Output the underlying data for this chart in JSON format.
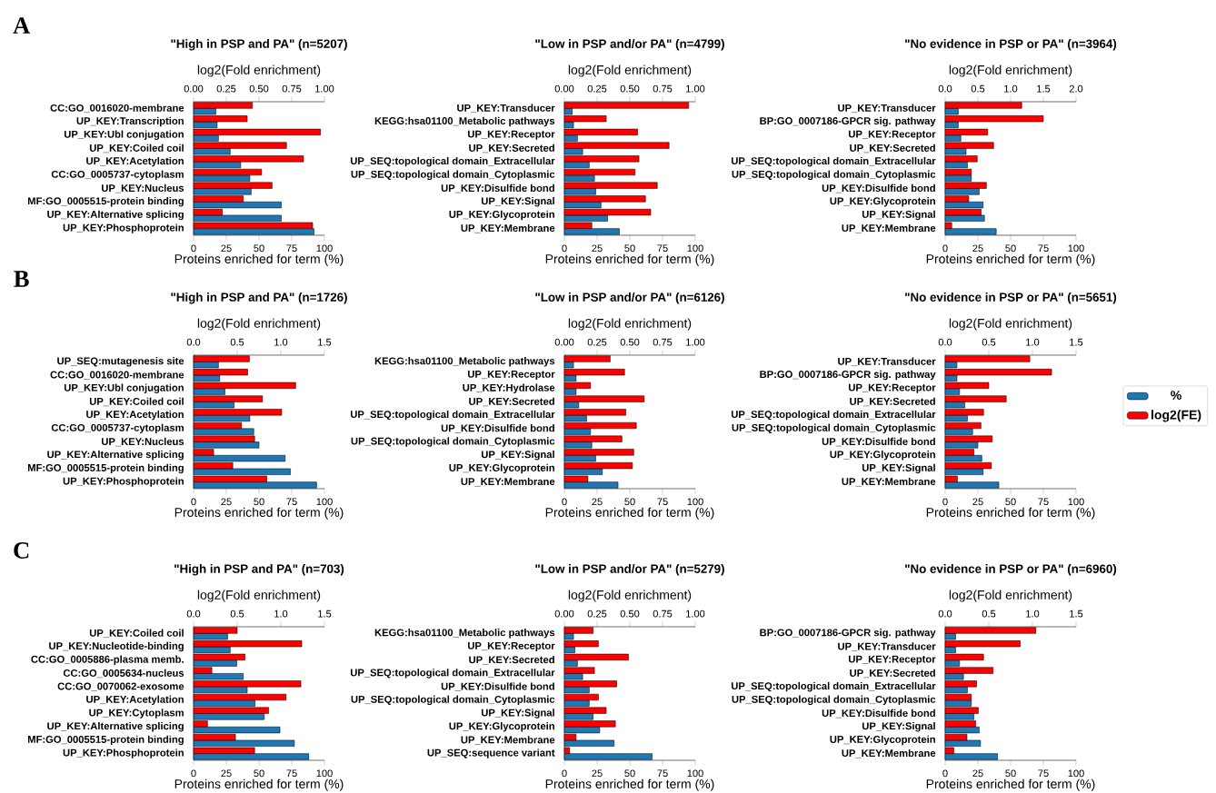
{
  "chart_data": [
    {
      "type": "bar",
      "orientation": "horizontal",
      "title": "\"High in PSP and PA\" (n=5207)",
      "xlabel": "Proteins enriched for term (%)",
      "x2label": "log2(Fold enrichment)",
      "annotations": [
        "A"
      ],
      "categories": [
        "CC:GO_0016020-membrane",
        "UP_KEY:Transcription",
        "UP_KEY:Ubl conjugation",
        "UP_KEY:Coiled coil",
        "UP_KEY:Acetylation",
        "CC:GO_0005737-cytoplasm",
        "UP_KEY:Nucleus",
        "MF:GO_0005515-protein binding",
        "UP_KEY:Alternative splicing",
        "UP_KEY:Phosphoprotein"
      ],
      "series": [
        {
          "color": "#1f77b4",
          "values": [
            17,
            18,
            19,
            28,
            36,
            43,
            44,
            67,
            67,
            92
          ]
        },
        {
          "color": "#ff0000",
          "axis": "x2",
          "values": [
            0.45,
            0.41,
            0.97,
            0.71,
            0.84,
            0.52,
            0.6,
            0.38,
            0.22,
            0.91
          ]
        }
      ],
      "xlim": [
        0,
        100
      ],
      "xticks": [
        0,
        25,
        50,
        75,
        100
      ],
      "x2lim": [
        0,
        1
      ],
      "x2ticks": [
        {
          "value": 0,
          "label": "0.00"
        },
        {
          "value": 0.25,
          "label": "0.25"
        },
        {
          "value": 0.5,
          "label": "0.50"
        },
        {
          "value": 0.75,
          "label": "0.75"
        },
        {
          "value": 1,
          "label": "1.00"
        }
      ]
    },
    {
      "type": "bar",
      "orientation": "horizontal",
      "title": "\"Low in PSP and/or PA\" (n=4799)",
      "xlabel": "Proteins enriched for term (%)",
      "x2label": "log2(Fold enrichment)",
      "categories": [
        "UP_KEY:Transducer",
        "KEGG:hsa01100_Metabolic pathways",
        "UP_KEY:Receptor",
        "UP_KEY:Secreted",
        "UP_SEQ:topological domain_Extracellular",
        "UP_SEQ:topological domain_Cytoplasmic",
        "UP_KEY:Disulfide bond",
        "UP_KEY:Signal",
        "UP_KEY:Glycoprotein",
        "UP_KEY:Membrane"
      ],
      "series": [
        {
          "color": "#1f77b4",
          "values": [
            6,
            7,
            10,
            14,
            19,
            23,
            24,
            28,
            33,
            42
          ]
        },
        {
          "color": "#ff0000",
          "axis": "x2",
          "values": [
            0.95,
            0.32,
            0.56,
            0.8,
            0.57,
            0.54,
            0.71,
            0.62,
            0.66,
            0.21
          ]
        }
      ],
      "xlim": [
        0,
        100
      ],
      "xticks": [
        0,
        25,
        50,
        75,
        100
      ],
      "x2lim": [
        0,
        1
      ],
      "x2ticks": [
        {
          "value": 0,
          "label": "0.00"
        },
        {
          "value": 0.25,
          "label": "0.25"
        },
        {
          "value": 0.5,
          "label": "0.50"
        },
        {
          "value": 0.75,
          "label": "0.75"
        },
        {
          "value": 1,
          "label": "1.00"
        }
      ]
    },
    {
      "type": "bar",
      "orientation": "horizontal",
      "title": "\"No evidence in PSP or PA\" (n=3964)",
      "xlabel": "Proteins enriched for term (%)",
      "x2label": "log2(Fold enrichment)",
      "categories": [
        "UP_KEY:Transducer",
        "BP:GO_0007186-GPCR sig. pathway",
        "UP_KEY:Receptor",
        "UP_KEY:Secreted",
        "UP_SEQ:topological domain_Extracellular",
        "UP_SEQ:topological domain_Cytoplasmic",
        "UP_KEY:Disulfide bond",
        "UP_KEY:Glycoprotein",
        "UP_KEY:Signal",
        "UP_KEY:Membrane"
      ],
      "series": [
        {
          "color": "#1f77b4",
          "values": [
            10,
            10,
            12,
            16,
            17,
            20,
            26,
            29,
            30,
            39
          ]
        },
        {
          "color": "#ff0000",
          "axis": "x2",
          "values": [
            1.17,
            1.5,
            0.65,
            0.74,
            0.49,
            0.4,
            0.63,
            0.36,
            0.55,
            0.1
          ]
        }
      ],
      "xlim": [
        0,
        100
      ],
      "xticks": [
        0,
        25,
        50,
        75,
        100
      ],
      "x2lim": [
        0,
        2
      ],
      "x2ticks": [
        {
          "value": 0,
          "label": "0.0"
        },
        {
          "value": 0.5,
          "label": "0.5"
        },
        {
          "value": 1,
          "label": "1.0"
        },
        {
          "value": 1.5,
          "label": "1.5"
        },
        {
          "value": 2,
          "label": "2.0"
        }
      ]
    },
    {
      "type": "bar",
      "orientation": "horizontal",
      "title": "\"High in PSP and PA\" (n=1726)",
      "xlabel": "Proteins enriched for term (%)",
      "x2label": "log2(Fold enrichment)",
      "annotations": [
        "B"
      ],
      "categories": [
        "UP_SEQ:mutagenesis site",
        "CC:GO_0016020-membrane",
        "UP_KEY:Ubl conjugation",
        "UP_KEY:Coiled coil",
        "UP_KEY:Acetylation",
        "CC:GO_0005737-cytoplasm",
        "UP_KEY:Nucleus",
        "UP_KEY:Alternative splicing",
        "MF:GO_0005515-protein binding",
        "UP_KEY:Phosphoprotein"
      ],
      "series": [
        {
          "color": "#1f77b4",
          "values": [
            19,
            20,
            24,
            31,
            43,
            46,
            50,
            70,
            74,
            94
          ]
        },
        {
          "color": "#ff0000",
          "axis": "x2",
          "values": [
            0.64,
            0.62,
            1.17,
            0.79,
            1.01,
            0.55,
            0.7,
            0.23,
            0.45,
            0.84
          ]
        }
      ],
      "xlim": [
        0,
        100
      ],
      "xticks": [
        0,
        25,
        50,
        75,
        100
      ],
      "x2lim": [
        0,
        1.5
      ],
      "x2ticks": [
        {
          "value": 0,
          "label": "0.0"
        },
        {
          "value": 0.5,
          "label": "0.5"
        },
        {
          "value": 1,
          "label": "1.0"
        },
        {
          "value": 1.5,
          "label": "1.5"
        }
      ]
    },
    {
      "type": "bar",
      "orientation": "horizontal",
      "title": "\"Low in PSP and/or PA\" (n=6126)",
      "xlabel": "Proteins enriched for term (%)",
      "x2label": "log2(Fold enrichment)",
      "categories": [
        "KEGG:hsa01100_Metabolic pathways",
        "UP_KEY:Receptor",
        "UP_KEY:Hydrolase",
        "UP_KEY:Secreted",
        "UP_SEQ:topological domain_Extracellular",
        "UP_KEY:Disulfide bond",
        "UP_SEQ:topological domain_Cytoplasmic",
        "UP_KEY:Signal",
        "UP_KEY:Glycoprotein",
        "UP_KEY:Membrane"
      ],
      "series": [
        {
          "color": "#1f77b4",
          "values": [
            7,
            9,
            9,
            11,
            17,
            20,
            21,
            24,
            29,
            41
          ]
        },
        {
          "color": "#ff0000",
          "axis": "x2",
          "values": [
            0.35,
            0.46,
            0.2,
            0.61,
            0.47,
            0.55,
            0.44,
            0.53,
            0.52,
            0.18
          ]
        }
      ],
      "xlim": [
        0,
        100
      ],
      "xticks": [
        0,
        25,
        50,
        75,
        100
      ],
      "x2lim": [
        0,
        1
      ],
      "x2ticks": [
        {
          "value": 0,
          "label": "0.00"
        },
        {
          "value": 0.25,
          "label": "0.25"
        },
        {
          "value": 0.5,
          "label": "0.50"
        },
        {
          "value": 0.75,
          "label": "0.75"
        },
        {
          "value": 1,
          "label": "1.00"
        }
      ]
    },
    {
      "type": "bar",
      "orientation": "horizontal",
      "title": "\"No evidence in PSP or PA\" (n=5651)",
      "xlabel": "Proteins enriched for term (%)",
      "x2label": "log2(Fold enrichment)",
      "legend": "right",
      "categories": [
        "UP_KEY:Transducer",
        "BP:GO_0007186-GPCR sig. pathway",
        "UP_KEY:Receptor",
        "UP_KEY:Secreted",
        "UP_SEQ:topological domain_Extracellular",
        "UP_SEQ:topological domain_Cytoplasmic",
        "UP_KEY:Disulfide bond",
        "UP_KEY:Glycoprotein",
        "UP_KEY:Signal",
        "UP_KEY:Membrane"
      ],
      "series": [
        {
          "name": "%",
          "color": "#1f77b4",
          "values": [
            9,
            9,
            11,
            15,
            17,
            21,
            25,
            28,
            29,
            41
          ]
        },
        {
          "name": "log2(FE)",
          "color": "#ff0000",
          "axis": "x2",
          "values": [
            0.97,
            1.22,
            0.5,
            0.7,
            0.44,
            0.41,
            0.54,
            0.33,
            0.53,
            0.14
          ]
        }
      ],
      "xlim": [
        0,
        100
      ],
      "xticks": [
        0,
        25,
        50,
        75,
        100
      ],
      "x2lim": [
        0,
        1.5
      ],
      "x2ticks": [
        {
          "value": 0,
          "label": "0.0"
        },
        {
          "value": 0.5,
          "label": "0.5"
        },
        {
          "value": 1,
          "label": "1.0"
        },
        {
          "value": 1.5,
          "label": "1.5"
        }
      ]
    },
    {
      "type": "bar",
      "orientation": "horizontal",
      "title": "\"High in PSP and PA\" (n=703)",
      "xlabel": "Proteins enriched for term (%)",
      "x2label": "log2(Fold enrichment)",
      "annotations": [
        "C"
      ],
      "categories": [
        "UP_KEY:Coiled coil",
        "UP_KEY:Nucleotide-binding",
        "CC:GO_0005886-plasma memb.",
        "CC:GO_0005634-nucleus",
        "CC:GO_0070062-exosome",
        "UP_KEY:Acetylation",
        "UP_KEY:Cytoplasm",
        "UP_KEY:Alternative splicing",
        "MF:GO_0005515-protein binding",
        "UP_KEY:Phosphoprotein"
      ],
      "series": [
        {
          "color": "#1f77b4",
          "values": [
            26,
            28,
            33,
            38,
            41,
            47,
            54,
            66,
            77,
            88
          ]
        },
        {
          "color": "#ff0000",
          "axis": "x2",
          "values": [
            0.5,
            1.24,
            0.59,
            0.21,
            1.23,
            1.06,
            0.86,
            0.16,
            0.48,
            0.7
          ]
        }
      ],
      "xlim": [
        0,
        100
      ],
      "xticks": [
        0,
        25,
        50,
        75,
        100
      ],
      "x2lim": [
        0,
        1.5
      ],
      "x2ticks": [
        {
          "value": 0,
          "label": "0.0"
        },
        {
          "value": 0.5,
          "label": "0.5"
        },
        {
          "value": 1,
          "label": "1.0"
        },
        {
          "value": 1.5,
          "label": "1.5"
        }
      ]
    },
    {
      "type": "bar",
      "orientation": "horizontal",
      "title": "\"Low in PSP and/or PA\" (n=5279)",
      "xlabel": "Proteins enriched for term (%)",
      "x2label": "log2(Fold enrichment)",
      "categories": [
        "KEGG:hsa01100_Metabolic pathways",
        "UP_KEY:Receptor",
        "UP_KEY:Secreted",
        "UP_SEQ:topological domain_Extracellular",
        "UP_KEY:Disulfide bond",
        "UP_SEQ:topological domain_Cytoplasmic",
        "UP_KEY:Signal",
        "UP_KEY:Glycoprotein",
        "UP_KEY:Membrane",
        "UP_SEQ:sequence variant"
      ],
      "series": [
        {
          "color": "#1f77b4",
          "values": [
            7,
            8,
            10,
            14,
            19,
            19,
            22,
            27,
            38,
            67
          ]
        },
        {
          "color": "#ff0000",
          "axis": "x2",
          "values": [
            0.22,
            0.26,
            0.49,
            0.23,
            0.4,
            0.26,
            0.32,
            0.39,
            0.09,
            0.04
          ]
        }
      ],
      "xlim": [
        0,
        100
      ],
      "xticks": [
        0,
        25,
        50,
        75,
        100
      ],
      "x2lim": [
        0,
        1
      ],
      "x2ticks": [
        {
          "value": 0,
          "label": "0.00"
        },
        {
          "value": 0.25,
          "label": "0.25"
        },
        {
          "value": 0.5,
          "label": "0.50"
        },
        {
          "value": 0.75,
          "label": "0.75"
        },
        {
          "value": 1,
          "label": "1.00"
        }
      ]
    },
    {
      "type": "bar",
      "orientation": "horizontal",
      "title": "\"No evidence in PSP or PA\" (n=6960)",
      "xlabel": "Proteins enriched for term (%)",
      "x2label": "log2(Fold enrichment)",
      "categories": [
        "BP:GO_0007186-GPCR sig. pathway",
        "UP_KEY:Transducer",
        "UP_KEY:Receptor",
        "UP_KEY:Secreted",
        "UP_SEQ:topological domain_Extracellular",
        "UP_SEQ:topological domain_Cytoplasmic",
        "UP_KEY:Disulfide bond",
        "UP_KEY:Signal",
        "UP_KEY:Glycoprotein",
        "UP_KEY:Membrane"
      ],
      "series": [
        {
          "color": "#1f77b4",
          "values": [
            8,
            8,
            11,
            14,
            17,
            20,
            22,
            26,
            27,
            40
          ]
        },
        {
          "color": "#ff0000",
          "axis": "x2",
          "values": [
            1.04,
            0.86,
            0.44,
            0.55,
            0.36,
            0.3,
            0.38,
            0.35,
            0.25,
            0.1
          ]
        }
      ],
      "xlim": [
        0,
        100
      ],
      "xticks": [
        0,
        25,
        50,
        75,
        100
      ],
      "x2lim": [
        0,
        1.5
      ],
      "x2ticks": [
        {
          "value": 0,
          "label": "0.0"
        },
        {
          "value": 0.5,
          "label": "0.5"
        },
        {
          "value": 1,
          "label": "1.0"
        },
        {
          "value": 1.5,
          "label": "1.5"
        }
      ]
    }
  ]
}
